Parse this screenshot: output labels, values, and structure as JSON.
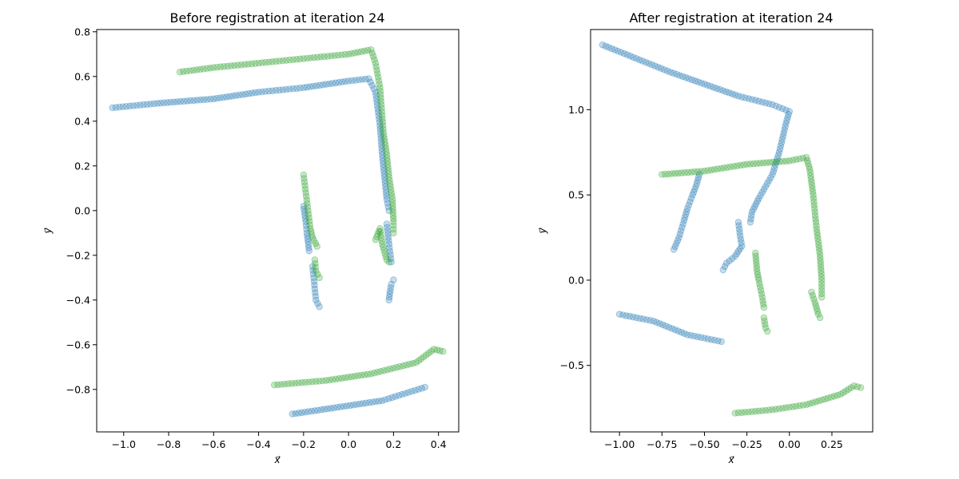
{
  "chart_data": [
    {
      "type": "scatter",
      "title": "Before registration at iteration 24",
      "xlabel": "x⃗",
      "ylabel": "y⃗",
      "xlim": [
        -1.12,
        0.49
      ],
      "ylim": [
        -0.99,
        0.81
      ],
      "xticks": [
        "−1.0",
        "−0.8",
        "−0.6",
        "−0.4",
        "−0.2",
        "0.0",
        "0.2",
        "0.4"
      ],
      "xtick_values": [
        -1.0,
        -0.8,
        -0.6,
        -0.4,
        -0.2,
        0.0,
        0.2,
        0.4
      ],
      "yticks": [
        "−0.8",
        "−0.6",
        "−0.4",
        "−0.2",
        "0.0",
        "0.2",
        "0.4",
        "0.6",
        "0.8"
      ],
      "ytick_values": [
        -0.8,
        -0.6,
        -0.4,
        -0.2,
        0.0,
        0.2,
        0.4,
        0.6,
        0.8
      ],
      "grid": false,
      "series": [
        {
          "color": "#1f77b4",
          "segments": [
            [
              [
                -1.05,
                0.46
              ],
              [
                -0.85,
                0.48
              ],
              [
                -0.6,
                0.5
              ],
              [
                -0.4,
                0.53
              ],
              [
                -0.2,
                0.55
              ],
              [
                0.0,
                0.58
              ],
              [
                0.09,
                0.59
              ],
              [
                0.12,
                0.53
              ],
              [
                0.14,
                0.38
              ],
              [
                0.15,
                0.25
              ],
              [
                0.16,
                0.15
              ],
              [
                0.17,
                0.05
              ],
              [
                0.18,
                0.0
              ]
            ],
            [
              [
                -0.2,
                0.02
              ],
              [
                -0.19,
                -0.05
              ],
              [
                -0.185,
                -0.1
              ],
              [
                -0.18,
                -0.14
              ],
              [
                -0.175,
                -0.18
              ]
            ],
            [
              [
                -0.16,
                -0.25
              ],
              [
                -0.155,
                -0.3
              ],
              [
                -0.15,
                -0.35
              ],
              [
                -0.145,
                -0.4
              ],
              [
                -0.13,
                -0.43
              ]
            ],
            [
              [
                0.2,
                -0.31
              ],
              [
                0.19,
                -0.33
              ],
              [
                0.185,
                -0.36
              ],
              [
                0.18,
                -0.4
              ]
            ],
            [
              [
                0.17,
                -0.06
              ],
              [
                0.18,
                -0.15
              ],
              [
                0.19,
                -0.23
              ]
            ],
            [
              [
                -0.25,
                -0.91
              ],
              [
                -0.05,
                -0.88
              ],
              [
                0.15,
                -0.85
              ],
              [
                0.34,
                -0.79
              ]
            ]
          ]
        },
        {
          "color": "#2ca02c",
          "segments": [
            [
              [
                -0.75,
                0.62
              ],
              [
                -0.6,
                0.64
              ],
              [
                -0.4,
                0.66
              ],
              [
                -0.2,
                0.68
              ],
              [
                0.0,
                0.7
              ],
              [
                0.1,
                0.72
              ],
              [
                0.12,
                0.66
              ],
              [
                0.14,
                0.55
              ],
              [
                0.155,
                0.35
              ],
              [
                0.17,
                0.25
              ],
              [
                0.18,
                0.15
              ],
              [
                0.195,
                0.05
              ],
              [
                0.2,
                -0.05
              ],
              [
                0.2,
                -0.1
              ]
            ],
            [
              [
                -0.2,
                0.16
              ],
              [
                -0.19,
                0.08
              ],
              [
                -0.18,
                0.0
              ],
              [
                -0.17,
                -0.08
              ],
              [
                -0.16,
                -0.12
              ],
              [
                -0.14,
                -0.16
              ]
            ],
            [
              [
                -0.15,
                -0.22
              ],
              [
                -0.145,
                -0.27
              ],
              [
                -0.13,
                -0.3
              ]
            ],
            [
              [
                0.12,
                -0.13
              ],
              [
                0.14,
                -0.08
              ],
              [
                0.15,
                -0.15
              ],
              [
                0.17,
                -0.22
              ],
              [
                0.18,
                -0.23
              ]
            ],
            [
              [
                -0.33,
                -0.78
              ],
              [
                -0.1,
                -0.76
              ],
              [
                0.1,
                -0.73
              ],
              [
                0.3,
                -0.68
              ],
              [
                0.38,
                -0.62
              ],
              [
                0.42,
                -0.63
              ]
            ]
          ]
        }
      ]
    },
    {
      "type": "scatter",
      "title": "After registration at iteration 24",
      "xlabel": "x⃗",
      "ylabel": "y⃗",
      "xlim": [
        -1.17,
        0.49
      ],
      "ylim": [
        -0.89,
        1.47
      ],
      "xticks": [
        "−1.00",
        "−0.75",
        "−0.50",
        "−0.25",
        "0.00",
        "0.25"
      ],
      "xtick_values": [
        -1.0,
        -0.75,
        -0.5,
        -0.25,
        0.0,
        0.25
      ],
      "yticks": [
        "−0.5",
        "0.0",
        "0.5",
        "1.0"
      ],
      "ytick_values": [
        -0.5,
        0.0,
        0.5,
        1.0
      ],
      "grid": false,
      "series": [
        {
          "color": "#1f77b4",
          "segments": [
            [
              [
                -1.1,
                1.38
              ],
              [
                -0.9,
                1.3
              ],
              [
                -0.7,
                1.22
              ],
              [
                -0.5,
                1.15
              ],
              [
                -0.3,
                1.08
              ],
              [
                -0.1,
                1.03
              ],
              [
                0.0,
                0.99
              ],
              [
                -0.02,
                0.92
              ],
              [
                -0.06,
                0.75
              ],
              [
                -0.1,
                0.62
              ],
              [
                -0.14,
                0.55
              ],
              [
                -0.18,
                0.48
              ],
              [
                -0.22,
                0.4
              ],
              [
                -0.23,
                0.34
              ]
            ],
            [
              [
                -0.53,
                0.62
              ],
              [
                -0.55,
                0.55
              ],
              [
                -0.57,
                0.5
              ],
              [
                -0.6,
                0.42
              ],
              [
                -0.62,
                0.35
              ],
              [
                -0.65,
                0.25
              ],
              [
                -0.68,
                0.18
              ]
            ],
            [
              [
                -0.3,
                0.34
              ],
              [
                -0.29,
                0.26
              ],
              [
                -0.28,
                0.2
              ],
              [
                -0.32,
                0.14
              ],
              [
                -0.37,
                0.1
              ],
              [
                -0.39,
                0.06
              ]
            ],
            [
              [
                -1.0,
                -0.2
              ],
              [
                -0.8,
                -0.24
              ],
              [
                -0.6,
                -0.32
              ],
              [
                -0.4,
                -0.36
              ]
            ]
          ]
        },
        {
          "color": "#2ca02c",
          "segments": [
            [
              [
                -0.75,
                0.62
              ],
              [
                -0.5,
                0.64
              ],
              [
                -0.25,
                0.68
              ],
              [
                0.0,
                0.7
              ],
              [
                0.1,
                0.72
              ],
              [
                0.12,
                0.65
              ],
              [
                0.14,
                0.5
              ],
              [
                0.16,
                0.3
              ],
              [
                0.18,
                0.15
              ],
              [
                0.19,
                0.0
              ],
              [
                0.19,
                -0.1
              ]
            ],
            [
              [
                -0.2,
                0.16
              ],
              [
                -0.19,
                0.05
              ],
              [
                -0.18,
                0.0
              ],
              [
                -0.16,
                -0.1
              ],
              [
                -0.15,
                -0.16
              ]
            ],
            [
              [
                -0.15,
                -0.22
              ],
              [
                -0.14,
                -0.28
              ],
              [
                -0.13,
                -0.3
              ]
            ],
            [
              [
                0.13,
                -0.07
              ],
              [
                0.15,
                -0.13
              ],
              [
                0.17,
                -0.2
              ],
              [
                0.18,
                -0.22
              ]
            ],
            [
              [
                -0.32,
                -0.78
              ],
              [
                -0.1,
                -0.76
              ],
              [
                0.1,
                -0.73
              ],
              [
                0.3,
                -0.67
              ],
              [
                0.38,
                -0.62
              ],
              [
                0.42,
                -0.63
              ]
            ]
          ]
        }
      ]
    }
  ]
}
